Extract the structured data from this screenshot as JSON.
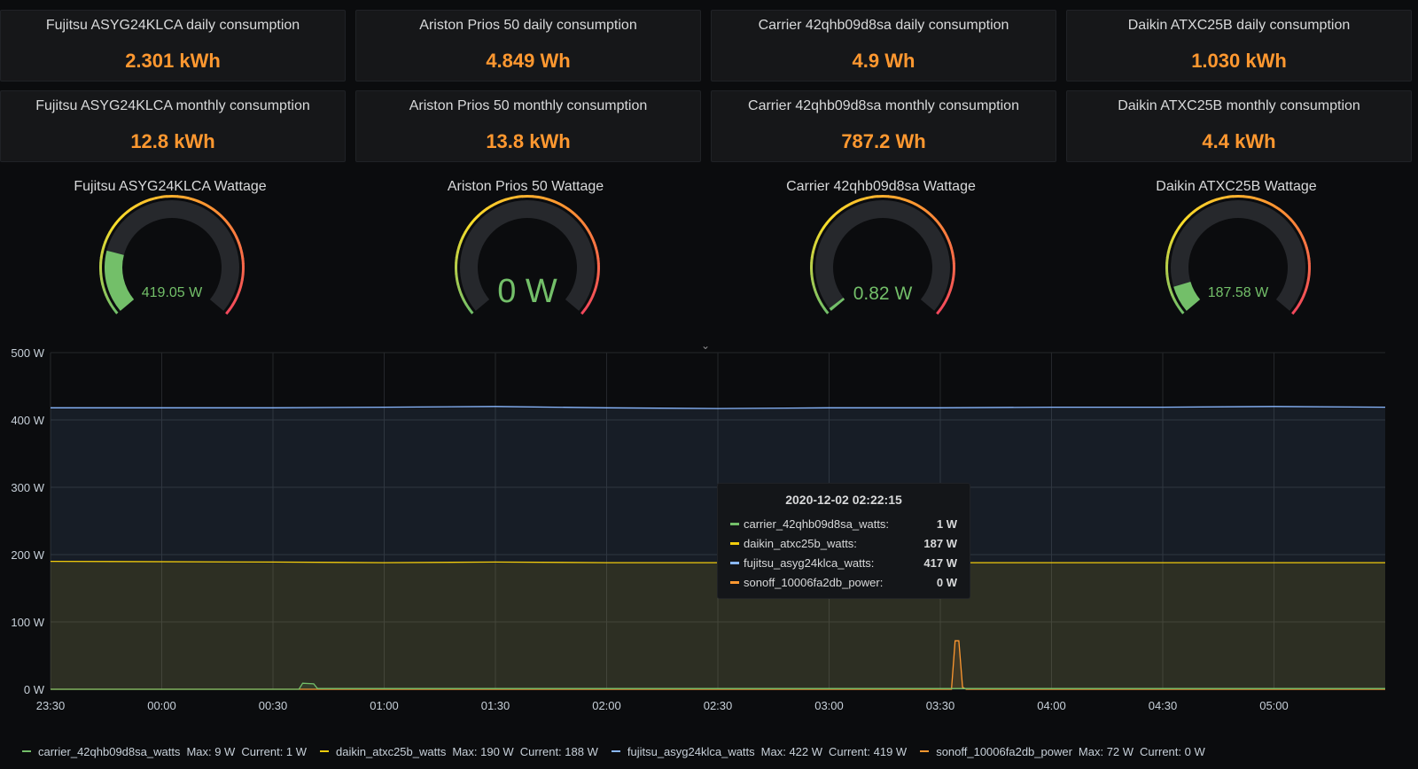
{
  "stats": [
    {
      "title": "Fujitsu ASYG24KLCA daily consumption",
      "value": "2.301 kWh"
    },
    {
      "title": "Ariston Prios 50 daily consumption",
      "value": "4.849 Wh"
    },
    {
      "title": "Carrier 42qhb09d8sa daily consumption",
      "value": "4.9 Wh"
    },
    {
      "title": "Daikin ATXC25B daily consumption",
      "value": "1.030 kWh"
    },
    {
      "title": "Fujitsu ASYG24KLCA monthly consumption",
      "value": "12.8 kWh"
    },
    {
      "title": "Ariston Prios 50 monthly consumption",
      "value": "13.8 kWh"
    },
    {
      "title": "Carrier 42qhb09d8sa monthly consumption",
      "value": "787.2 Wh"
    },
    {
      "title": "Daikin ATXC25B monthly consumption",
      "value": "4.4 kWh"
    }
  ],
  "gauges": [
    {
      "title": "Fujitsu ASYG24KLCA Wattage",
      "value": "419.05 W",
      "level": 0.21,
      "large": false
    },
    {
      "title": "Ariston Prios 50 Wattage",
      "value": "0 W",
      "level": 0.0,
      "large": true
    },
    {
      "title": "Carrier 42qhb09d8sa Wattage",
      "value": "0.82 W",
      "level": 0.01,
      "large": false
    },
    {
      "title": "Daikin ATXC25B Wattage",
      "value": "187.58 W",
      "level": 0.09,
      "large": false
    }
  ],
  "colors": {
    "stat_value": "#ff9830",
    "gauge_value": "#73bf69",
    "carrier": "#73bf69",
    "daikin": "#f2cc0c",
    "fujitsu": "#8ab8ff",
    "sonoff": "#ff9830"
  },
  "chart_data": {
    "type": "line",
    "y_ticks": [
      "0 W",
      "100 W",
      "200 W",
      "300 W",
      "400 W",
      "500 W"
    ],
    "ylim": [
      0,
      500
    ],
    "x_ticks": [
      "23:30",
      "00:00",
      "00:30",
      "01:00",
      "01:30",
      "02:00",
      "02:30",
      "03:00",
      "03:30",
      "04:00",
      "04:30",
      "05:00"
    ],
    "xlim": [
      "2020-12-01 23:30",
      "2020-12-02 05:30"
    ],
    "series": [
      {
        "name": "carrier_42qhb09d8sa_watts",
        "points": [
          [
            "23:30",
            0
          ],
          [
            "00:37",
            0
          ],
          [
            "00:38",
            9
          ],
          [
            "00:41",
            8
          ],
          [
            "00:42",
            1
          ],
          [
            "05:30",
            1
          ]
        ]
      },
      {
        "name": "daikin_atxc25b_watts",
        "points": [
          [
            "23:30",
            190
          ],
          [
            "00:30",
            189
          ],
          [
            "01:00",
            188
          ],
          [
            "01:30",
            189
          ],
          [
            "02:00",
            188
          ],
          [
            "02:30",
            188
          ],
          [
            "03:00",
            189
          ],
          [
            "03:30",
            188
          ],
          [
            "04:00",
            188
          ],
          [
            "04:30",
            188
          ],
          [
            "05:00",
            188
          ],
          [
            "05:30",
            188
          ]
        ]
      },
      {
        "name": "fujitsu_asyg24klca_watts",
        "points": [
          [
            "23:30",
            418
          ],
          [
            "00:00",
            418
          ],
          [
            "00:30",
            418
          ],
          [
            "01:00",
            419
          ],
          [
            "01:30",
            420
          ],
          [
            "02:00",
            418
          ],
          [
            "02:30",
            417
          ],
          [
            "03:00",
            418
          ],
          [
            "03:30",
            418
          ],
          [
            "04:00",
            419
          ],
          [
            "04:30",
            419
          ],
          [
            "05:00",
            420
          ],
          [
            "05:30",
            419
          ]
        ]
      },
      {
        "name": "sonoff_10006fa2db_power",
        "points": [
          [
            "23:30",
            0
          ],
          [
            "03:33",
            0
          ],
          [
            "03:34",
            72
          ],
          [
            "03:35",
            72
          ],
          [
            "03:36",
            3
          ],
          [
            "03:37",
            0
          ],
          [
            "05:30",
            0
          ]
        ]
      }
    ],
    "grid": true,
    "legend_position": "bottom-left"
  },
  "tooltip": {
    "time": "2020-12-02 02:22:15",
    "rows": [
      {
        "name": "carrier_42qhb09d8sa_watts:",
        "value": "1 W"
      },
      {
        "name": "daikin_atxc25b_watts:",
        "value": "187 W"
      },
      {
        "name": "fujitsu_asyg24klca_watts:",
        "value": "417 W"
      },
      {
        "name": "sonoff_10006fa2db_power:",
        "value": "0 W"
      }
    ]
  },
  "legend": [
    {
      "name": "carrier_42qhb09d8sa_watts",
      "max": "Max: 9 W",
      "current": "Current: 1 W"
    },
    {
      "name": "daikin_atxc25b_watts",
      "max": "Max: 190 W",
      "current": "Current: 188 W"
    },
    {
      "name": "fujitsu_asyg24klca_watts",
      "max": "Max: 422 W",
      "current": "Current: 419 W"
    },
    {
      "name": "sonoff_10006fa2db_power",
      "max": "Max: 72 W",
      "current": "Current: 0 W"
    }
  ]
}
